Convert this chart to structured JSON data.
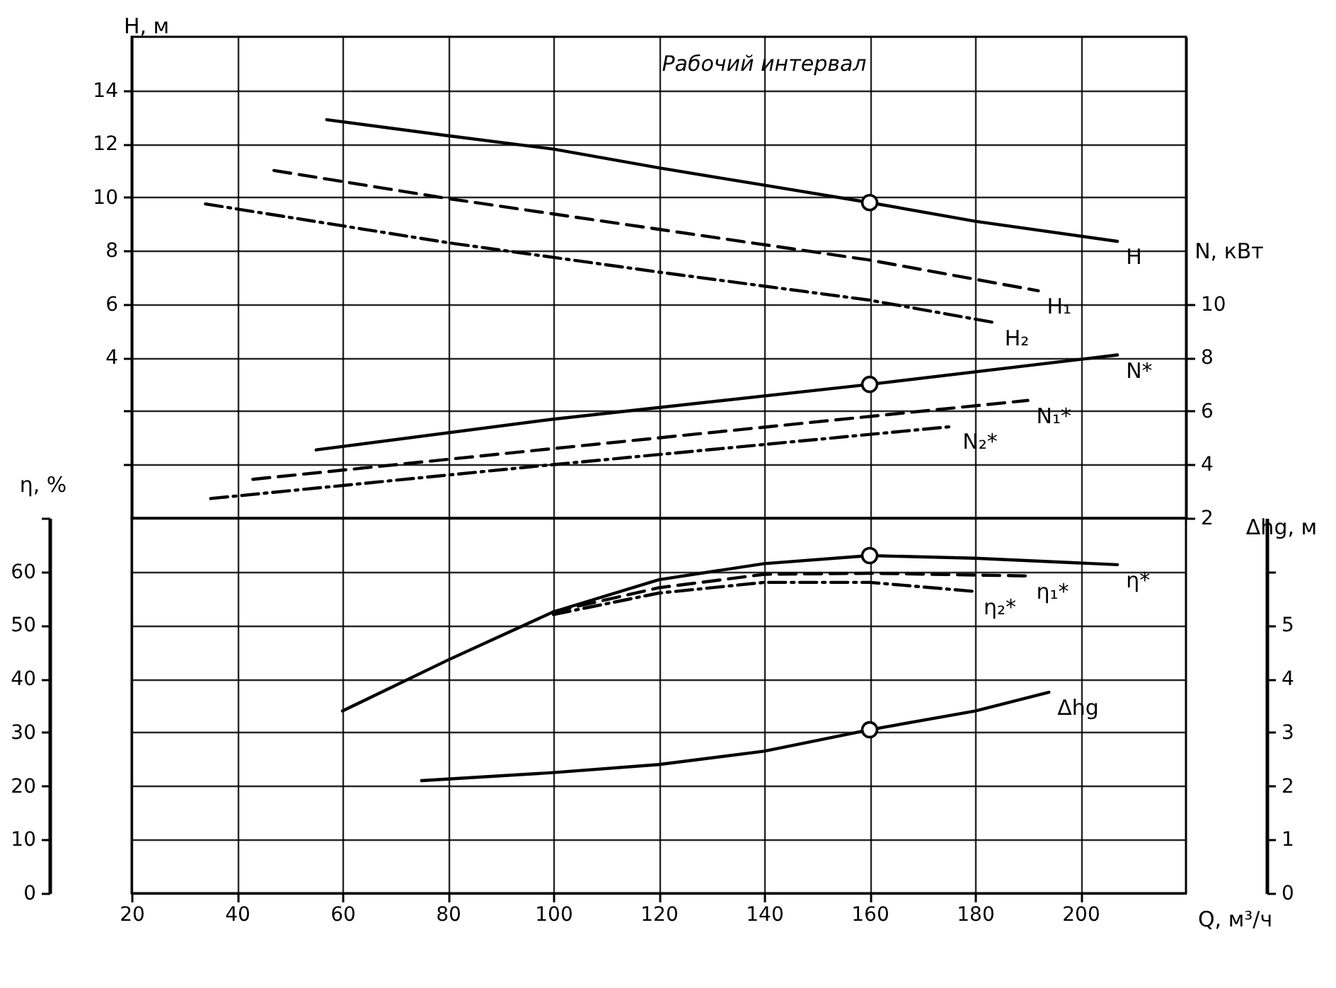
{
  "chart_data": [
    {
      "type": "line",
      "ylabel": "H, м",
      "y2label": "N, кВт",
      "tick_labels": "y",
      "xlim": [
        20,
        220
      ],
      "xticks": [
        20,
        40,
        60,
        80,
        100,
        120,
        140,
        160,
        180,
        200
      ],
      "ylim": [
        -2,
        16
      ],
      "yticks": [
        {
          "value": 0,
          "label": null
        },
        {
          "value": 2,
          "label": null
        },
        4,
        6,
        8,
        10,
        12,
        14
      ],
      "y2lim": [
        2,
        20
      ],
      "y2ticks": [
        2,
        4,
        6,
        8,
        10
      ],
      "grid": true,
      "annotations": [
        "Рабочий интервал"
      ],
      "series": [
        {
          "name": "H",
          "color": "#000000",
          "line_style": "solid",
          "x": [
            57,
            80,
            100,
            120,
            140,
            160,
            180,
            207
          ],
          "values": [
            12.9,
            12.3,
            11.8,
            11.1,
            10.45,
            9.8,
            9.1,
            8.35
          ]
        },
        {
          "name": "H₁",
          "color": "#000000",
          "line_style": "dashed",
          "x": [
            47,
            80,
            120,
            160,
            192
          ],
          "values": [
            11,
            9.95,
            8.8,
            7.65,
            6.5
          ]
        },
        {
          "name": "H₂",
          "color": "#000000",
          "line_style": "dashdot",
          "x": [
            34,
            80,
            120,
            160,
            184
          ],
          "values": [
            9.75,
            8.3,
            7.2,
            6.15,
            5.3
          ]
        },
        {
          "name": "N*",
          "color": "#000000",
          "axis": "y2",
          "line_style": "solid",
          "x": [
            55,
            100,
            160,
            207
          ],
          "values": [
            4.55,
            5.7,
            7.0,
            8.1
          ]
        },
        {
          "name": "N₁*",
          "color": "#000000",
          "axis": "y2",
          "line_style": "dashed",
          "x": [
            43,
            100,
            160,
            190
          ],
          "values": [
            3.45,
            4.6,
            5.8,
            6.4
          ]
        },
        {
          "name": "N₂*",
          "color": "#000000",
          "axis": "y2",
          "line_style": "dashdot",
          "x": [
            35,
            100,
            176
          ],
          "values": [
            2.73,
            4.0,
            5.43
          ]
        },
        {
          "type": "scatter",
          "marker": "circle",
          "color": "#000000",
          "x": [
            160
          ],
          "values": [
            9.8
          ]
        },
        {
          "type": "scatter",
          "marker": "circle",
          "color": "#000000",
          "axis": "y2",
          "x": [
            160
          ],
          "values": [
            7.0
          ]
        }
      ]
    },
    {
      "type": "line",
      "xlabel": "Q, м³/ч",
      "ylabel": "η, %",
      "y2label": "Δhg, м",
      "xlim": [
        20,
        220
      ],
      "xticks": [
        20,
        40,
        60,
        80,
        100,
        120,
        140,
        160,
        180,
        200
      ],
      "ylim": [
        0,
        70
      ],
      "yticks": [
        0,
        10,
        20,
        30,
        40,
        50,
        60,
        {
          "value": 70,
          "label": null
        }
      ],
      "y2lim": [
        0,
        7
      ],
      "y2ticks": [
        0,
        1,
        2,
        3,
        4,
        5,
        {
          "value": 6,
          "label": null
        }
      ],
      "grid": true,
      "series": [
        {
          "name": "η*",
          "color": "#000000",
          "line_style": "solid",
          "x": [
            60,
            80,
            100,
            120,
            140,
            160,
            180,
            207
          ],
          "values": [
            34,
            43.5,
            52.5,
            58.5,
            61.5,
            63,
            62.5,
            61.3
          ]
        },
        {
          "name": "η₁*",
          "color": "#000000",
          "line_style": "dashed",
          "x": [
            100,
            120,
            140,
            160,
            190
          ],
          "values": [
            52.5,
            57,
            59.5,
            59.7,
            59.2
          ]
        },
        {
          "name": "η₂*",
          "color": "#000000",
          "line_style": "dashdot",
          "x": [
            100,
            120,
            140,
            160,
            180
          ],
          "values": [
            52,
            56,
            58,
            58,
            56.3
          ]
        },
        {
          "name": "Δhg",
          "color": "#000000",
          "axis": "y2",
          "line_style": "solid",
          "x": [
            75,
            100,
            120,
            140,
            160,
            180,
            194
          ],
          "values": [
            2.1,
            2.25,
            2.4,
            2.65,
            3.05,
            3.4,
            3.75
          ]
        },
        {
          "type": "scatter",
          "marker": "circle",
          "color": "#000000",
          "x": [
            160
          ],
          "values": [
            63
          ]
        },
        {
          "type": "scatter",
          "marker": "circle",
          "color": "#000000",
          "axis": "y2",
          "x": [
            160
          ],
          "values": [
            3.05
          ]
        }
      ]
    }
  ]
}
